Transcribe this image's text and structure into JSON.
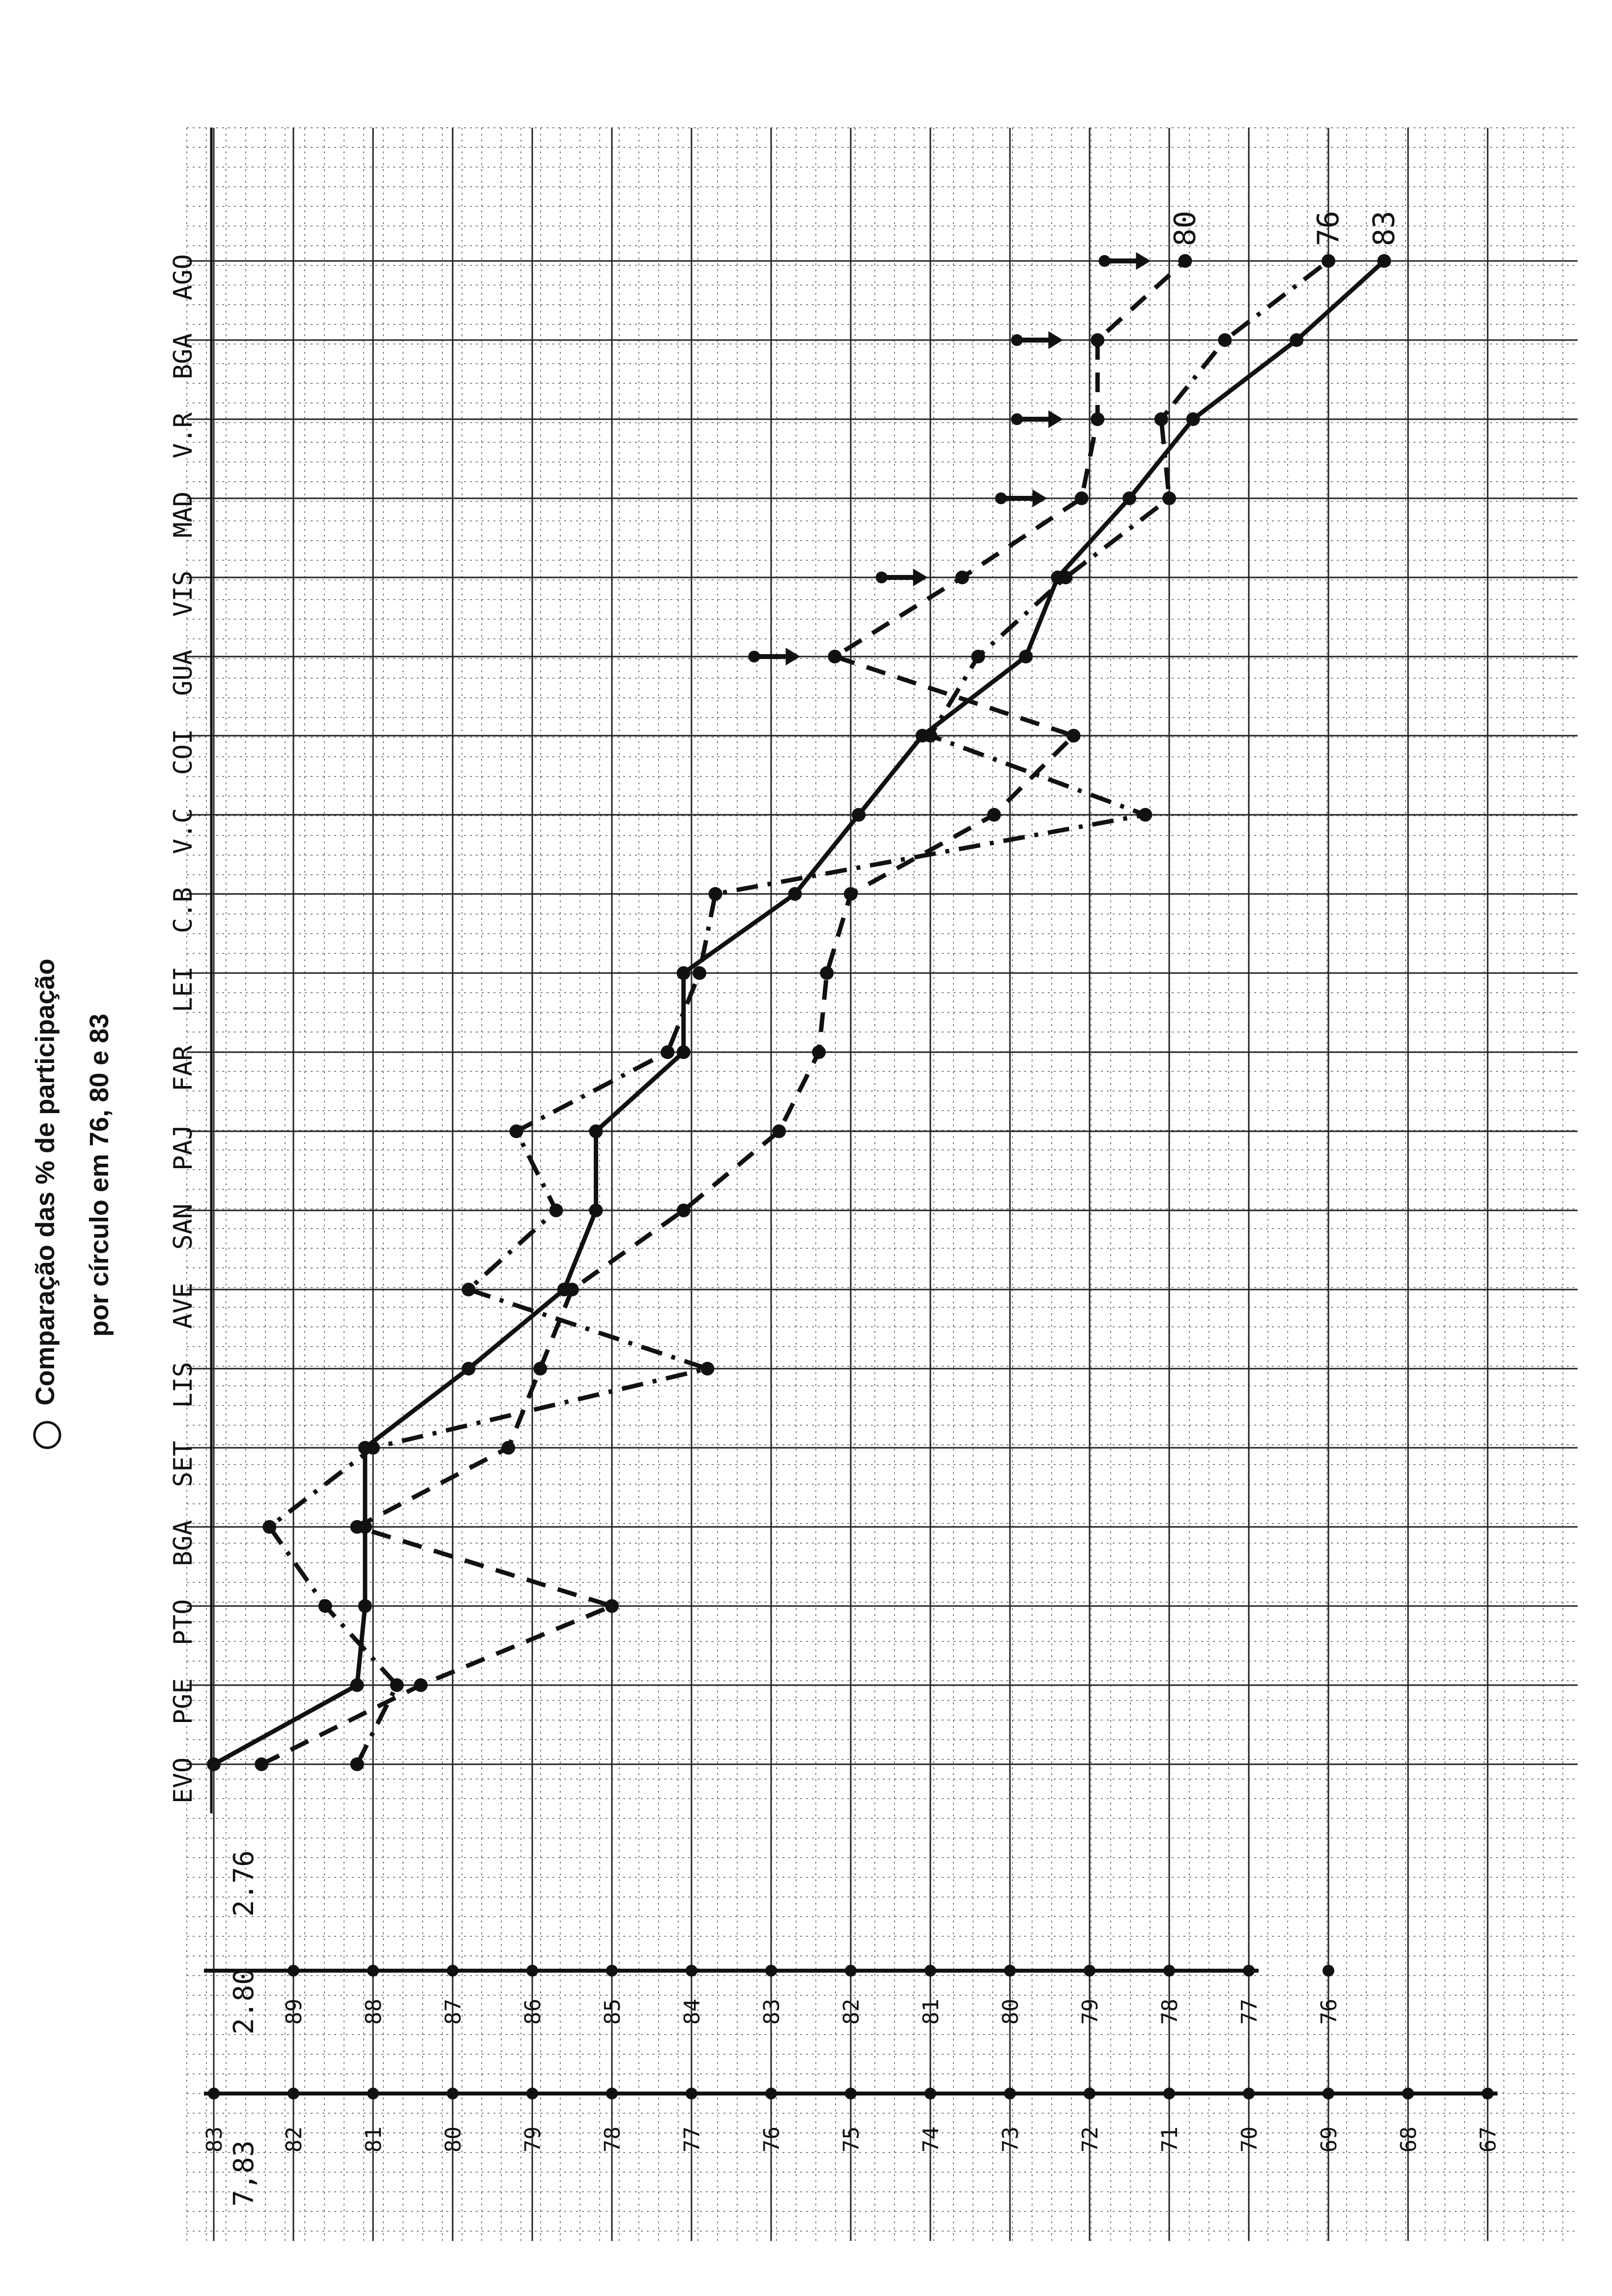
{
  "chart_data": {
    "type": "line",
    "title": "Comparação das % de participação",
    "subtitle": "por círculo em 76, 80 e 83",
    "categories": [
      "EVO",
      "PGE",
      "PTO",
      "BGA",
      "SET",
      "LIS",
      "AVE",
      "SAN",
      "PAJ",
      "FAR",
      "LEI",
      "C.B",
      "V.C",
      "COI",
      "GUA",
      "VIS",
      "MAD",
      "V.R",
      "BGA",
      "AGO"
    ],
    "scale_headers": [
      "7,83",
      "2.80",
      "2.76"
    ],
    "axes": [
      {
        "header": "7,83",
        "ticks": [
          "83",
          "82",
          "81",
          "80",
          "79",
          "78",
          "77",
          "76",
          "75",
          "74",
          "73",
          "72",
          "71",
          "70",
          "69",
          "68",
          "67"
        ]
      },
      {
        "header": "2.80",
        "ticks": [
          "89",
          "88",
          "87",
          "86",
          "85",
          "84",
          "83",
          "82",
          "81",
          "80",
          "79",
          "78",
          "77",
          "76"
        ]
      }
    ],
    "series": [
      {
        "name": "83",
        "style": "solid",
        "values": [
          83.0,
          81.2,
          81.1,
          81.1,
          81.1,
          79.8,
          78.6,
          78.2,
          78.2,
          77.1,
          77.1,
          75.7,
          74.9,
          74.1,
          72.8,
          72.4,
          71.5,
          70.7,
          69.4,
          68.3
        ]
      },
      {
        "name": "80",
        "style": "dashed",
        "values": [
          82.4,
          80.4,
          78.0,
          81.2,
          79.3,
          78.9,
          78.5,
          77.1,
          75.9,
          75.4,
          75.3,
          75.0,
          73.2,
          72.2,
          75.2,
          73.6,
          72.1,
          71.9,
          71.9,
          70.8
        ]
      },
      {
        "name": "76",
        "style": "dash-dot",
        "values": [
          81.2,
          80.7,
          81.6,
          82.3,
          81.0,
          76.8,
          79.8,
          78.7,
          79.2,
          77.3,
          76.9,
          76.7,
          71.3,
          74.0,
          73.4,
          72.3,
          71.0,
          71.1,
          70.3,
          69.0
        ]
      }
    ],
    "arrows_at": [
      "GUA",
      "VIS",
      "MAD",
      "V.R",
      "BGA",
      "AGO"
    ],
    "ylim": [
      67,
      83
    ],
    "grid": true
  }
}
